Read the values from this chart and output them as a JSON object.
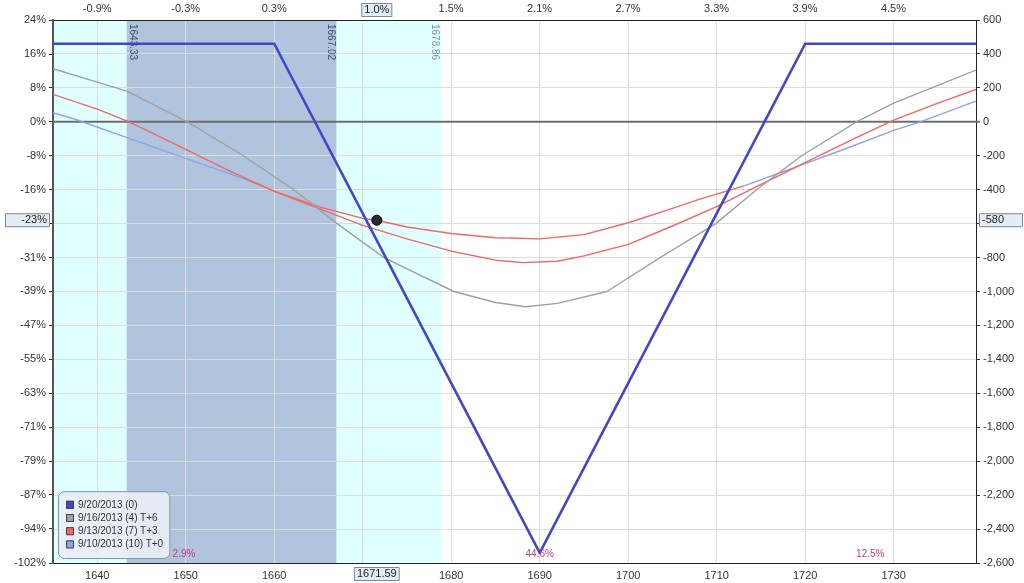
{
  "chart_data": {
    "type": "line",
    "xlim": [
      1635,
      1739.3
    ],
    "xticks": [
      1640,
      1650,
      1660,
      {
        "value": 1670,
        "label": null
      },
      1680,
      1690,
      1700,
      1710,
      1720,
      1730
    ],
    "x2lim": [
      -1.2,
      5.06
    ],
    "x2ticks": [
      {
        "value": -0.9,
        "label": "-0.9%"
      },
      {
        "value": -0.3,
        "label": "-0.3%"
      },
      {
        "value": 0.3,
        "label": "0.3%"
      },
      {
        "value": 0.9,
        "label": null
      },
      {
        "value": 1.5,
        "label": "1.5%"
      },
      {
        "value": 2.1,
        "label": "2.1%"
      },
      {
        "value": 2.7,
        "label": "2.7%"
      },
      {
        "value": 3.3,
        "label": "3.3%"
      },
      {
        "value": 3.9,
        "label": "3.9%"
      },
      {
        "value": 4.5,
        "label": "4.5%"
      }
    ],
    "ylim": [
      -102.3,
      23.6
    ],
    "yticks": [
      {
        "value": 23.6,
        "label": "24%"
      },
      {
        "value": 15.7,
        "label": "16%"
      },
      {
        "value": 7.9,
        "label": "8%"
      },
      {
        "value": 0,
        "label": "0%"
      },
      {
        "value": -7.9,
        "label": "-8%"
      },
      {
        "value": -15.7,
        "label": "-16%"
      },
      {
        "value": -23.6,
        "label": null
      },
      {
        "value": -31.5,
        "label": "-31%"
      },
      {
        "value": -39.3,
        "label": "-39%"
      },
      {
        "value": -47.2,
        "label": "-47%"
      },
      {
        "value": -55.1,
        "label": "-55%"
      },
      {
        "value": -62.9,
        "label": "-63%"
      },
      {
        "value": -70.8,
        "label": "-71%"
      },
      {
        "value": -78.7,
        "label": "-79%"
      },
      {
        "value": -86.5,
        "label": "-87%"
      },
      {
        "value": -94.4,
        "label": "-94%"
      },
      {
        "value": -102.3,
        "label": "-102%"
      }
    ],
    "y2lim": [
      -2600,
      600
    ],
    "y2ticks": [
      600,
      400,
      200,
      0,
      -200,
      -400,
      {
        "value": -600,
        "label": null
      },
      -800,
      {
        "value": -1000,
        "label": "-1,000"
      },
      {
        "value": -1200,
        "label": "-1,200"
      },
      {
        "value": -1400,
        "label": "-1,400"
      },
      {
        "value": -1600,
        "label": "-1,600"
      },
      {
        "value": -1800,
        "label": "-1,800"
      },
      {
        "value": -2000,
        "label": "-2,000"
      },
      {
        "value": -2200,
        "label": "-2,200"
      },
      {
        "value": -2400,
        "label": "-2,400"
      },
      {
        "value": -2600,
        "label": "-2,600"
      }
    ],
    "grid": true,
    "legend": "bottom left",
    "bands": [
      {
        "axis": "x",
        "from": 1635,
        "to": 1678.86,
        "color": "#e0ffff"
      },
      {
        "axis": "x",
        "from": 1643.33,
        "to": 1667.02,
        "color": "#b0c4de"
      }
    ],
    "ref_lines": [
      {
        "axis": "y2",
        "value": 0,
        "color": "#6e6e6e"
      }
    ],
    "series": [
      {
        "name": "9/20/2013 (0)",
        "color": "#4545c8",
        "axis": "y2",
        "x": [
          1635,
          1660,
          1690,
          1720,
          1739.3
        ],
        "values": [
          460,
          460,
          -2540,
          460,
          460
        ]
      },
      {
        "name": "9/16/2013 (4) T+6",
        "color": "#a0a0a0",
        "axis": "y2",
        "x": [
          1635,
          1640,
          1643.33,
          1650.2,
          1656.5,
          1662.2,
          1667.1,
          1672.4,
          1680.3,
          1685,
          1688.4,
          1692,
          1697.6,
          1703.6,
          1709.9,
          1714.5,
          1719.6,
          1725.8,
          1730,
          1735,
          1739.3
        ],
        "values": [
          313,
          234,
          181,
          0,
          -200,
          -400,
          -600,
          -800,
          -1000,
          -1065,
          -1090,
          -1070,
          -1000,
          -800,
          -600,
          -400,
          -200,
          0,
          110,
          215,
          305
        ]
      },
      {
        "name": "9/13/2013 (7) T+3",
        "color": "#f26666",
        "axis": "y2",
        "x": [
          1635,
          1640,
          1643.6,
          1650,
          1655,
          1660,
          1665,
          1670,
          1675,
          1680,
          1685,
          1688,
          1692,
          1695,
          1700,
          1705,
          1710,
          1715,
          1720,
          1725,
          1730,
          1735,
          1739.3
        ],
        "values": [
          162,
          75,
          0,
          -163,
          -290,
          -410,
          -510,
          -610,
          -690,
          -762,
          -815,
          -830,
          -822,
          -790,
          -722,
          -614,
          -500,
          -369,
          -241,
          -112,
          10,
          110,
          191
        ]
      },
      {
        "name": "9/10/2013 (10) T+0",
        "color": "#8fa3e8",
        "axis": "y2",
        "x": [
          1635,
          1637.5,
          1643.2,
          1650,
          1657.3,
          1685,
          1713,
          1717.2,
          1720,
          1725,
          1730,
          1733,
          1739.3
        ],
        "values": [
          54,
          15,
          -90,
          -215,
          -349,
          null,
          -379,
          -300,
          -246,
          -150,
          -50,
          0,
          122
        ]
      },
      {
        "color": "#f26666",
        "axis": "y2",
        "x": [
          1657.3,
          1660,
          1665,
          1670,
          1671.59,
          1675,
          1680,
          1685,
          1690,
          1695,
          1700,
          1705,
          1708,
          1713
        ],
        "values": [
          -349,
          -408,
          -500,
          -569,
          -580,
          -620,
          -658,
          -683,
          -690,
          -665,
          -595,
          -510,
          -457,
          -379
        ]
      },
      {
        "type": "scatter",
        "color": "#2a2a2a",
        "axis": "y2",
        "x": [
          1671.59
        ],
        "values": [
          -580
        ]
      }
    ],
    "annotations": [
      {
        "text": "1643.33",
        "x": 1643.33
      },
      {
        "text": "1667.02",
        "x": 1667.02
      },
      {
        "text": "1678.86",
        "x": 1678.86
      },
      "1671.59",
      "1.0%",
      "-23%",
      "-580",
      "2.9%",
      "44.6%",
      "12.5%"
    ]
  }
}
